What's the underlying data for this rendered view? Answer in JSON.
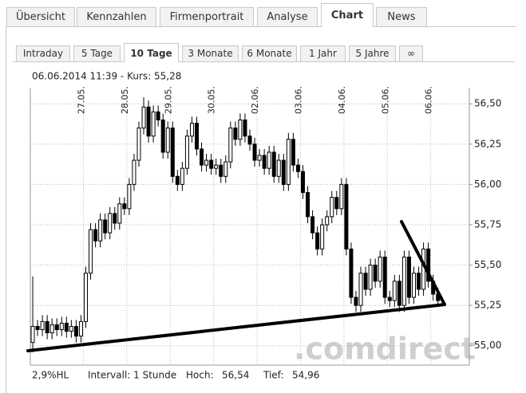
{
  "tabs": [
    "Übersicht",
    "Kennzahlen",
    "Firmenportrait",
    "Analyse",
    "Chart",
    "News"
  ],
  "subtabs": [
    "Intraday",
    "5 Tage",
    "10 Tage",
    "3 Monate",
    "6 Monate",
    "1 Jahr",
    "5 Jahre",
    "∞"
  ],
  "chart_data": {
    "type": "candlestick",
    "title": "06.06.2014 11:39  -  Kurs: 55,28",
    "watermark": ".comdirect",
    "xlim": [
      0,
      91
    ],
    "xticks": [
      {
        "value": 11,
        "label": "27.05."
      },
      {
        "value": 20,
        "label": "28.05."
      },
      {
        "value": 29,
        "label": "29.05."
      },
      {
        "value": 38,
        "label": "30.05."
      },
      {
        "value": 47,
        "label": "02.06."
      },
      {
        "value": 56,
        "label": "03.06."
      },
      {
        "value": 65,
        "label": "04.06."
      },
      {
        "value": 74,
        "label": "05.06."
      },
      {
        "value": 83,
        "label": "06.06."
      }
    ],
    "ylim": [
      54.88,
      56.6
    ],
    "yticks": [
      {
        "value": 55,
        "label": "55,00"
      },
      {
        "value": 55.25,
        "label": "55,25"
      },
      {
        "value": 55.5,
        "label": "55,50"
      },
      {
        "value": 55.75,
        "label": "55,75"
      },
      {
        "value": 56,
        "label": "56,00"
      },
      {
        "value": 56.25,
        "label": "56,25"
      },
      {
        "value": 56.5,
        "label": "56,50"
      }
    ],
    "grid": true,
    "color": "#000000",
    "candles": [
      [
        55.02,
        55.43,
        54.96,
        55.12
      ],
      [
        55.12,
        55.16,
        55.06,
        55.1
      ],
      [
        55.1,
        55.19,
        55.06,
        55.15
      ],
      [
        55.15,
        55.19,
        55.04,
        55.08
      ],
      [
        55.08,
        55.17,
        55.04,
        55.13
      ],
      [
        55.13,
        55.17,
        55.06,
        55.1
      ],
      [
        55.1,
        55.18,
        55.06,
        55.14
      ],
      [
        55.14,
        55.18,
        55.05,
        55.09
      ],
      [
        55.09,
        55.16,
        55.05,
        55.12
      ],
      [
        55.12,
        55.16,
        55.02,
        55.06
      ],
      [
        55.06,
        55.19,
        55.02,
        55.15
      ],
      [
        55.15,
        55.49,
        55.11,
        55.45
      ],
      [
        55.45,
        55.76,
        55.41,
        55.72
      ],
      [
        55.72,
        55.76,
        55.61,
        55.65
      ],
      [
        55.65,
        55.82,
        55.61,
        55.78
      ],
      [
        55.78,
        55.82,
        55.66,
        55.7
      ],
      [
        55.7,
        55.86,
        55.66,
        55.82
      ],
      [
        55.82,
        55.86,
        55.72,
        55.76
      ],
      [
        55.76,
        55.92,
        55.72,
        55.88
      ],
      [
        55.88,
        55.92,
        55.81,
        55.85
      ],
      [
        55.85,
        56.04,
        55.81,
        56.0
      ],
      [
        56.0,
        56.19,
        55.96,
        56.15
      ],
      [
        56.15,
        56.39,
        56.11,
        56.35
      ],
      [
        56.35,
        56.54,
        56.31,
        56.48
      ],
      [
        56.48,
        56.52,
        56.26,
        56.3
      ],
      [
        56.3,
        56.49,
        56.26,
        56.45
      ],
      [
        56.45,
        56.49,
        56.36,
        56.4
      ],
      [
        56.4,
        56.44,
        56.16,
        56.2
      ],
      [
        56.2,
        56.39,
        56.16,
        56.35
      ],
      [
        56.35,
        56.39,
        56.01,
        56.05
      ],
      [
        56.05,
        56.09,
        55.96,
        56.0
      ],
      [
        56.0,
        56.14,
        55.96,
        56.1
      ],
      [
        56.1,
        56.34,
        56.06,
        56.3
      ],
      [
        56.3,
        56.42,
        56.26,
        56.38
      ],
      [
        56.38,
        56.42,
        56.18,
        56.22
      ],
      [
        56.22,
        56.26,
        56.08,
        56.12
      ],
      [
        56.12,
        56.19,
        56.08,
        56.15
      ],
      [
        56.15,
        56.19,
        56.06,
        56.1
      ],
      [
        56.1,
        56.16,
        56.06,
        56.12
      ],
      [
        56.12,
        56.16,
        56.01,
        56.05
      ],
      [
        56.05,
        56.18,
        56.01,
        56.14
      ],
      [
        56.14,
        56.39,
        56.1,
        56.35
      ],
      [
        56.35,
        56.39,
        56.24,
        56.28
      ],
      [
        56.28,
        56.44,
        56.24,
        56.4
      ],
      [
        56.4,
        56.44,
        56.26,
        56.3
      ],
      [
        56.3,
        56.34,
        56.21,
        56.25
      ],
      [
        56.25,
        56.29,
        56.11,
        56.15
      ],
      [
        56.15,
        56.22,
        56.11,
        56.18
      ],
      [
        56.18,
        56.22,
        56.06,
        56.1
      ],
      [
        56.1,
        56.24,
        56.06,
        56.2
      ],
      [
        56.2,
        56.24,
        56.01,
        56.05
      ],
      [
        56.05,
        56.19,
        56.01,
        56.15
      ],
      [
        56.15,
        56.19,
        55.96,
        56.0
      ],
      [
        56.0,
        56.32,
        55.96,
        56.28
      ],
      [
        56.28,
        56.32,
        56.08,
        56.12
      ],
      [
        56.12,
        56.16,
        56.04,
        56.08
      ],
      [
        56.08,
        56.12,
        55.91,
        55.95
      ],
      [
        55.95,
        55.99,
        55.76,
        55.8
      ],
      [
        55.8,
        55.84,
        55.66,
        55.7
      ],
      [
        55.7,
        55.74,
        55.56,
        55.6
      ],
      [
        55.6,
        55.79,
        55.56,
        55.75
      ],
      [
        55.75,
        55.84,
        55.71,
        55.8
      ],
      [
        55.8,
        55.96,
        55.76,
        55.92
      ],
      [
        55.92,
        55.96,
        55.81,
        55.85
      ],
      [
        55.85,
        56.04,
        55.81,
        56.0
      ],
      [
        56.0,
        56.04,
        55.56,
        55.6
      ],
      [
        55.6,
        55.64,
        55.26,
        55.3
      ],
      [
        55.3,
        55.34,
        55.21,
        55.25
      ],
      [
        55.25,
        55.49,
        55.21,
        55.45
      ],
      [
        55.45,
        55.49,
        55.31,
        55.35
      ],
      [
        55.35,
        55.54,
        55.31,
        55.5
      ],
      [
        55.5,
        55.54,
        55.36,
        55.4
      ],
      [
        55.4,
        55.59,
        55.36,
        55.55
      ],
      [
        55.55,
        55.59,
        55.26,
        55.3
      ],
      [
        55.3,
        55.34,
        55.24,
        55.28
      ],
      [
        55.28,
        55.44,
        55.24,
        55.4
      ],
      [
        55.4,
        55.44,
        55.21,
        55.25
      ],
      [
        55.25,
        55.59,
        55.21,
        55.55
      ],
      [
        55.55,
        55.59,
        55.26,
        55.3
      ],
      [
        55.3,
        55.49,
        55.26,
        55.45
      ],
      [
        55.45,
        55.49,
        55.31,
        55.35
      ],
      [
        55.35,
        55.64,
        55.31,
        55.6
      ],
      [
        55.6,
        55.64,
        55.36,
        55.4
      ],
      [
        55.4,
        55.44,
        55.28,
        55.32
      ],
      [
        55.32,
        55.36,
        55.24,
        55.28
      ]
    ],
    "footer": {
      "range": "2,9%HL",
      "interval": "Intervall: 1 Stunde",
      "high_label": "Hoch:",
      "high": "56,54",
      "low_label": "Tief:",
      "low": "54,96"
    }
  }
}
